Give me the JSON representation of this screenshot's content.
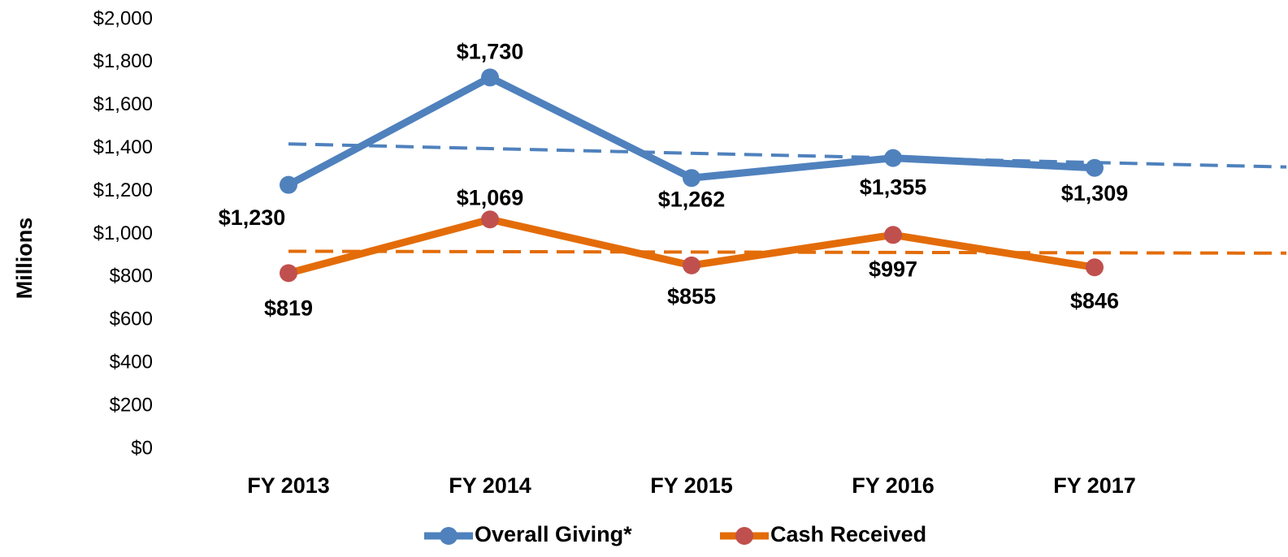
{
  "chart_data": {
    "type": "line",
    "y_label": "Millions",
    "categories": [
      "FY 2013",
      "FY 2014",
      "FY 2015",
      "FY 2016",
      "FY 2017"
    ],
    "series": [
      {
        "name": "Overall Giving*",
        "color": "#4f81bd",
        "marker_color": "#4f81bd",
        "values": [
          1230,
          1730,
          1262,
          1355,
          1309
        ],
        "value_labels": [
          "$1,230",
          "$1,730",
          "$1,262",
          "$1,355",
          "$1,309"
        ]
      },
      {
        "name": "Cash Received",
        "color": "#e36c09",
        "marker_color": "#c0504d",
        "values": [
          819,
          1069,
          855,
          997,
          846
        ],
        "value_labels": [
          "$819",
          "$1,069",
          "$855",
          "$997",
          "$846"
        ]
      }
    ],
    "ylim": [
      0,
      2000
    ],
    "yticks": [
      {
        "value": 0,
        "label": "$0"
      },
      {
        "value": 200,
        "label": "$200"
      },
      {
        "value": 400,
        "label": "$400"
      },
      {
        "value": 600,
        "label": "$600"
      },
      {
        "value": 800,
        "label": "$800"
      },
      {
        "value": 1000,
        "label": "$1,000"
      },
      {
        "value": 1200,
        "label": "$1,200"
      },
      {
        "value": 1400,
        "label": "$1,400"
      },
      {
        "value": 1600,
        "label": "$1,600"
      },
      {
        "value": 1800,
        "label": "$1,800"
      },
      {
        "value": 2000,
        "label": "$2,000"
      }
    ],
    "trendline": true,
    "grid": false,
    "legend": "bottom"
  }
}
